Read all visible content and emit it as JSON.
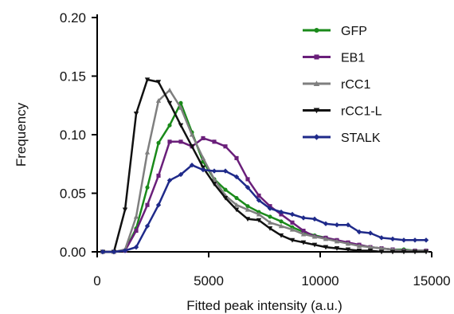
{
  "chart_data": {
    "type": "line",
    "xlabel": "Fitted peak intensity (a.u.)",
    "ylabel": "Frequency",
    "xlim": [
      0,
      15000
    ],
    "ylim": [
      0,
      0.2
    ],
    "xticks": [
      0,
      5000,
      10000,
      15000
    ],
    "yticks": [
      0.0,
      0.05,
      0.1,
      0.15,
      0.2
    ],
    "xtick_labels": [
      "0",
      "5000",
      "10000",
      "15000"
    ],
    "ytick_labels": [
      "0.00",
      "0.05",
      "0.10",
      "0.15",
      "0.20"
    ],
    "grid": false,
    "legend_position": "top-right",
    "x": [
      250,
      750,
      1250,
      1750,
      2250,
      2750,
      3250,
      3750,
      4250,
      4750,
      5250,
      5750,
      6250,
      6750,
      7250,
      7750,
      8250,
      8750,
      9250,
      9750,
      10250,
      10750,
      11250,
      11750,
      12250,
      12750,
      13250,
      13750,
      14250,
      14750
    ],
    "series": [
      {
        "name": "GFP",
        "color": "#1a8a1a",
        "marker": "circle",
        "values": [
          0,
          0,
          0.001,
          0.02,
          0.055,
          0.093,
          0.108,
          0.127,
          0.102,
          0.077,
          0.062,
          0.053,
          0.046,
          0.039,
          0.034,
          0.03,
          0.026,
          0.021,
          0.017,
          0.014,
          0.012,
          0.01,
          0.007,
          0.006,
          0.004,
          0.003,
          0.002,
          0.002,
          0.001,
          0.001
        ]
      },
      {
        "name": "EB1",
        "color": "#6a1f7a",
        "marker": "square",
        "values": [
          0,
          0,
          0.001,
          0.018,
          0.04,
          0.065,
          0.094,
          0.094,
          0.09,
          0.097,
          0.094,
          0.09,
          0.08,
          0.062,
          0.048,
          0.039,
          0.032,
          0.025,
          0.018,
          0.013,
          0.012,
          0.01,
          0.008,
          0.006,
          0.004,
          0.003,
          0.002,
          0.001,
          0.001,
          0.001
        ]
      },
      {
        "name": "rCC1",
        "color": "#7f7f7f",
        "marker": "triangle",
        "values": [
          0,
          0,
          0.002,
          0.03,
          0.085,
          0.129,
          0.138,
          0.123,
          0.1,
          0.08,
          0.062,
          0.048,
          0.04,
          0.036,
          0.032,
          0.025,
          0.022,
          0.019,
          0.015,
          0.013,
          0.011,
          0.009,
          0.007,
          0.005,
          0.004,
          0.003,
          0.002,
          0.001,
          0.001,
          0.001
        ]
      },
      {
        "name": "rCC1-L",
        "color": "#111111",
        "marker": "down-triangle",
        "values": [
          0,
          0,
          0.036,
          0.118,
          0.147,
          0.145,
          0.127,
          0.108,
          0.09,
          0.072,
          0.058,
          0.046,
          0.036,
          0.028,
          0.027,
          0.02,
          0.014,
          0.01,
          0.008,
          0.006,
          0.004,
          0.003,
          0.002,
          0.001,
          0.001,
          0.0,
          0.0,
          0.0,
          0.0,
          0.0
        ]
      },
      {
        "name": "STALK",
        "color": "#1f2a8a",
        "marker": "diamond",
        "values": [
          0,
          0,
          0.001,
          0.004,
          0.022,
          0.04,
          0.061,
          0.066,
          0.074,
          0.07,
          0.069,
          0.069,
          0.064,
          0.055,
          0.044,
          0.037,
          0.034,
          0.032,
          0.029,
          0.028,
          0.024,
          0.023,
          0.023,
          0.017,
          0.016,
          0.012,
          0.011,
          0.01,
          0.01,
          0.01
        ]
      }
    ]
  }
}
